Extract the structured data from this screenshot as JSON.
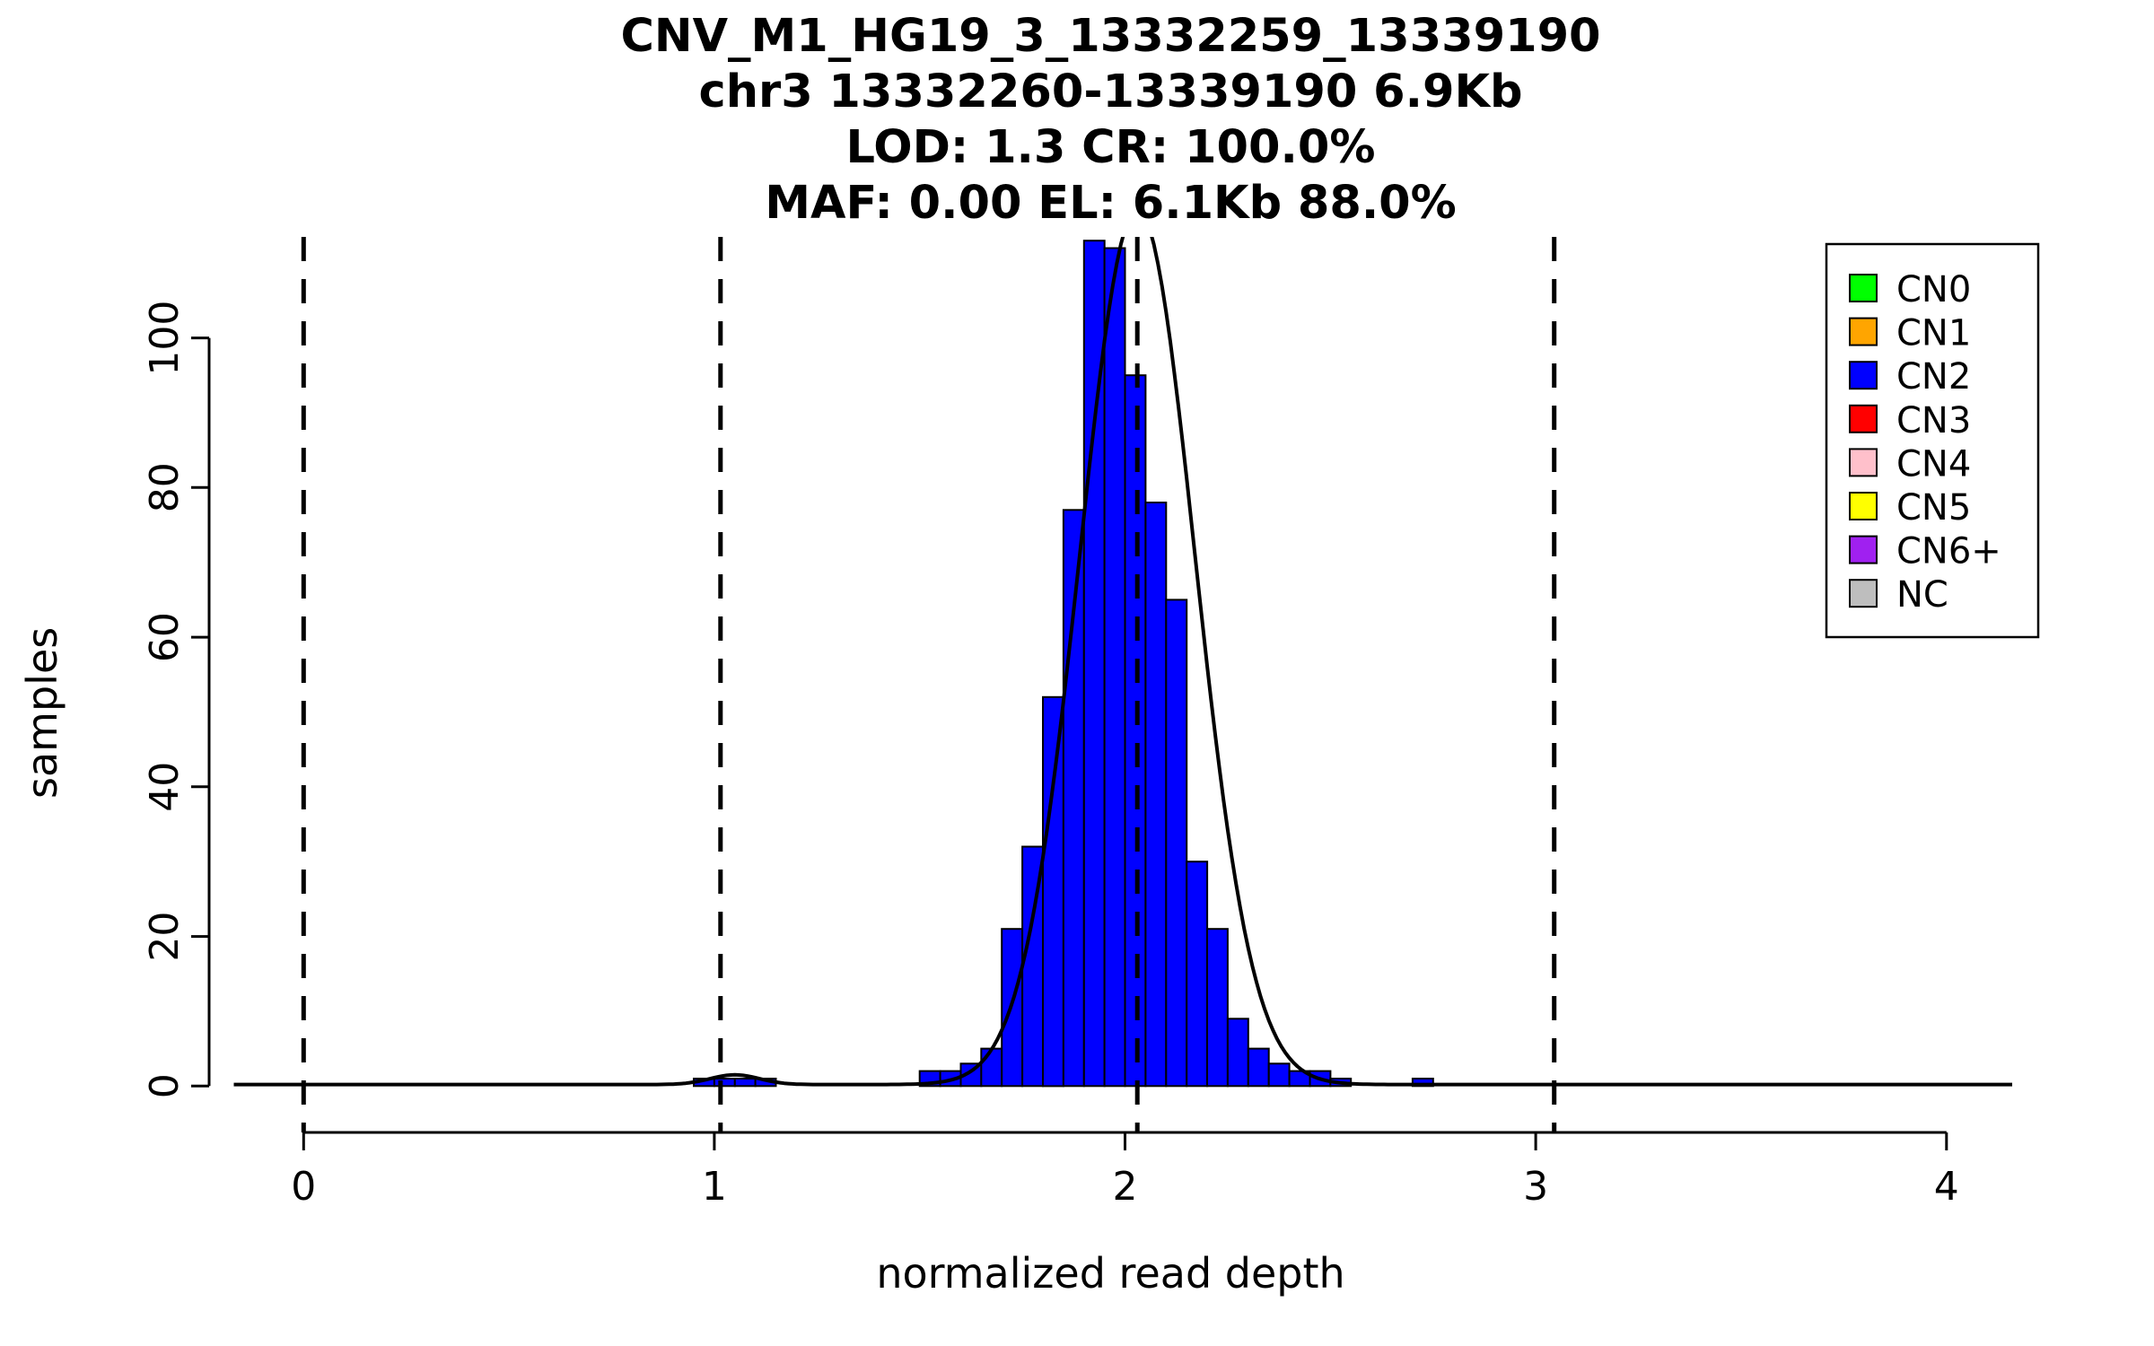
{
  "figure": {
    "background": "#FFFFFF"
  },
  "chart_data": {
    "type": "bar",
    "subtype": "histogram",
    "title_lines": [
      "CNV_M1_HG19_3_13332259_13339190",
      "chr3 13332260-13339190 6.9Kb",
      "LOD: 1.3 CR: 100.0%",
      "MAF: 0.00 EL: 6.1Kb 88.0%"
    ],
    "title": "CNV_M1_HG19_3_13332259_13339190 / chr3 13332260-13339190 6.9Kb / LOD: 1.3 CR: 100.0% / MAF: 0.00 EL: 6.1Kb 88.0%",
    "xlabel": "normalized read depth",
    "ylabel": "samples",
    "xlim": [
      -0.23,
      4.16
    ],
    "ylim": [
      -6.2,
      113.5
    ],
    "x_ticks": [
      0,
      1,
      2,
      3,
      4
    ],
    "y_ticks": [
      0,
      20,
      40,
      60,
      80,
      100
    ],
    "grid": false,
    "bin_width": 0.05,
    "bar_fill": "#0000FF",
    "bar_stroke": "#000000",
    "bins": [
      [
        0.95,
        1
      ],
      [
        1.0,
        1
      ],
      [
        1.05,
        1
      ],
      [
        1.1,
        1
      ],
      [
        1.5,
        2
      ],
      [
        1.55,
        2
      ],
      [
        1.6,
        3
      ],
      [
        1.65,
        5
      ],
      [
        1.7,
        21
      ],
      [
        1.75,
        32
      ],
      [
        1.8,
        52
      ],
      [
        1.85,
        77
      ],
      [
        1.9,
        113
      ],
      [
        1.95,
        112
      ],
      [
        2.0,
        95
      ],
      [
        2.05,
        78
      ],
      [
        2.1,
        65
      ],
      [
        2.15,
        30
      ],
      [
        2.2,
        21
      ],
      [
        2.25,
        9
      ],
      [
        2.3,
        5
      ],
      [
        2.35,
        3
      ],
      [
        2.4,
        2
      ],
      [
        2.45,
        2
      ],
      [
        2.5,
        1
      ],
      [
        2.7,
        1
      ]
    ],
    "dashed_vlines": {
      "x": [
        0,
        1.015,
        2.03,
        3.045
      ],
      "color": "#000000",
      "style": "dashed"
    },
    "density_curve": {
      "color": "#000000",
      "x_range": [
        -0.17,
        4.17
      ],
      "baseline": 0.2,
      "components": [
        {
          "mean": 1.05,
          "sd": 0.06,
          "peak": 1.3
        },
        {
          "mean": 2.03,
          "sd": 0.14,
          "peak": 117
        }
      ]
    },
    "legend": {
      "position": "top-right",
      "items": [
        {
          "label": "CN0",
          "color": "#00FF00"
        },
        {
          "label": "CN1",
          "color": "#FFA500"
        },
        {
          "label": "CN2",
          "color": "#0000FF"
        },
        {
          "label": "CN3",
          "color": "#FF0000"
        },
        {
          "label": "CN4",
          "color": "#FFC0CB"
        },
        {
          "label": "CN5",
          "color": "#FFFF00"
        },
        {
          "label": "CN6+",
          "color": "#A020F0"
        },
        {
          "label": "NC",
          "color": "#BEBEBE"
        }
      ]
    }
  }
}
